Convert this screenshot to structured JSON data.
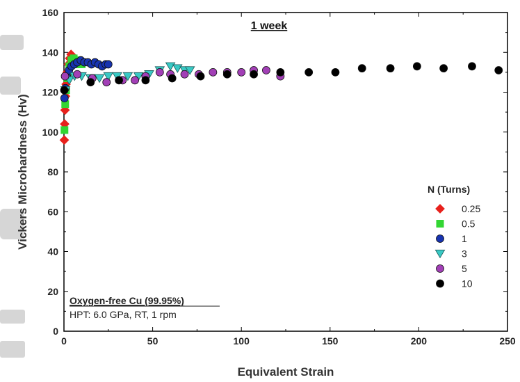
{
  "chart_data": {
    "type": "scatter",
    "title": "1 week",
    "xlabel": "Equivalent Strain",
    "ylabel": "Vickers Microhardness (Hv)",
    "xlim": [
      0,
      250
    ],
    "ylim": [
      0,
      160
    ],
    "xticks": [
      0,
      50,
      100,
      150,
      200,
      250
    ],
    "yticks": [
      0,
      20,
      40,
      60,
      80,
      100,
      120,
      140,
      160
    ],
    "grid": false,
    "legend_title": "N (Turns)",
    "legend_position": "right",
    "annotation": {
      "line1": "Oxygen-free Cu (99.95%)",
      "line2": "HPT: 6.0 GPa, RT, 1 rpm"
    },
    "series": [
      {
        "name": "0.25",
        "marker": "diamond",
        "color": "#e8211c",
        "points": [
          [
            0.2,
            96
          ],
          [
            0.4,
            104
          ],
          [
            0.6,
            111
          ],
          [
            0.9,
            118
          ],
          [
            1.2,
            124
          ],
          [
            1.8,
            130
          ],
          [
            2.5,
            134
          ],
          [
            3.2,
            137
          ],
          [
            4.0,
            139
          ],
          [
            4.6,
            138
          ],
          [
            5.3,
            135
          ]
        ]
      },
      {
        "name": "0.5",
        "marker": "square",
        "color": "#33d633",
        "points": [
          [
            0.3,
            101
          ],
          [
            0.7,
            114
          ],
          [
            1.2,
            121
          ],
          [
            2.0,
            127
          ],
          [
            3.0,
            133
          ],
          [
            4.2,
            136
          ],
          [
            5.5,
            137
          ],
          [
            7.0,
            136
          ],
          [
            8.5,
            134
          ],
          [
            10.0,
            134
          ]
        ]
      },
      {
        "name": "1",
        "marker": "circle",
        "color": "#1733b0",
        "points": [
          [
            0.3,
            117
          ],
          [
            0.8,
            122
          ],
          [
            1.6,
            128
          ],
          [
            2.8,
            131
          ],
          [
            4.2,
            133
          ],
          [
            5.8,
            134
          ],
          [
            7.5,
            135
          ],
          [
            9.5,
            136
          ],
          [
            11.5,
            135
          ],
          [
            13.5,
            135
          ],
          [
            15.5,
            134
          ],
          [
            17.5,
            135
          ],
          [
            19.5,
            134
          ],
          [
            21.5,
            133
          ],
          [
            23.5,
            134
          ],
          [
            25.0,
            134
          ]
        ]
      },
      {
        "name": "3",
        "marker": "triangle-down",
        "color": "#38c9c4",
        "points": [
          [
            0.8,
            121
          ],
          [
            3.0,
            126
          ],
          [
            6.0,
            128
          ],
          [
            10.0,
            128
          ],
          [
            15.0,
            127
          ],
          [
            20.0,
            127
          ],
          [
            25.0,
            128
          ],
          [
            30.0,
            128
          ],
          [
            36.0,
            128
          ],
          [
            42.0,
            128
          ],
          [
            48.0,
            129
          ],
          [
            54.0,
            131
          ],
          [
            60.0,
            133
          ],
          [
            64.0,
            132
          ],
          [
            68.0,
            131
          ],
          [
            71.0,
            131
          ]
        ]
      },
      {
        "name": "5",
        "marker": "circle",
        "color": "#a23fb6",
        "points": [
          [
            0.6,
            128
          ],
          [
            7.5,
            129
          ],
          [
            16.0,
            127
          ],
          [
            24.0,
            125
          ],
          [
            33.0,
            126
          ],
          [
            40.0,
            126
          ],
          [
            46.0,
            128
          ],
          [
            54.0,
            130
          ],
          [
            60.0,
            129
          ],
          [
            68.0,
            129
          ],
          [
            76.0,
            129
          ],
          [
            84.0,
            130
          ],
          [
            92.0,
            130
          ],
          [
            100.0,
            130
          ],
          [
            107.0,
            131
          ],
          [
            114.0,
            131
          ],
          [
            122.0,
            128
          ]
        ]
      },
      {
        "name": "10",
        "marker": "circle",
        "color": "#000000",
        "points": [
          [
            0.2,
            121
          ],
          [
            15.0,
            125
          ],
          [
            31.0,
            126
          ],
          [
            46.0,
            126
          ],
          [
            61.0,
            127
          ],
          [
            77.0,
            128
          ],
          [
            92.0,
            129
          ],
          [
            107.0,
            129
          ],
          [
            122.0,
            130
          ],
          [
            138.0,
            130
          ],
          [
            153.0,
            130
          ],
          [
            168.0,
            132
          ],
          [
            184.0,
            132
          ],
          [
            199.0,
            133
          ],
          [
            214.0,
            132
          ],
          [
            230.0,
            133
          ],
          [
            245.0,
            131
          ]
        ]
      }
    ]
  }
}
